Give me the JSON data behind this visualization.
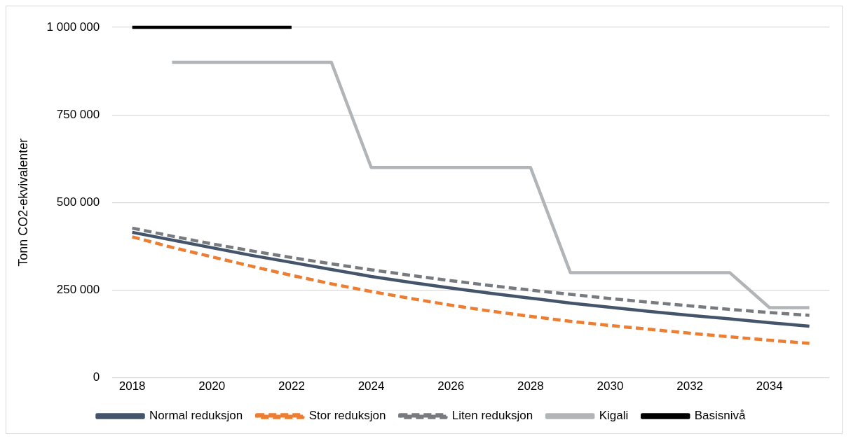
{
  "chart_data": {
    "type": "line",
    "ylabel": "Tonn CO2-ekvivalenter",
    "x": [
      2018,
      2019,
      2020,
      2021,
      2022,
      2023,
      2024,
      2025,
      2026,
      2027,
      2028,
      2029,
      2030,
      2031,
      2032,
      2033,
      2034,
      2035
    ],
    "xlim": [
      2017.5,
      2035.5
    ],
    "xticks": [
      2018,
      2020,
      2022,
      2024,
      2026,
      2028,
      2030,
      2032,
      2034
    ],
    "ylim": [
      0,
      1000000
    ],
    "yticks": [
      0,
      {
        "value": 250000,
        "label": "250 000"
      },
      {
        "value": 500000,
        "label": "500 000"
      },
      {
        "value": 750000,
        "label": "750 000"
      },
      {
        "value": 1000000,
        "label": "1 000 000"
      }
    ],
    "grid": "y",
    "legend": "bottom",
    "marker": "none",
    "series": [
      {
        "name": "Normal reduksjon",
        "color": "#44546a",
        "line_style": "solid",
        "values": [
          415000,
          393000,
          371000,
          349000,
          329000,
          309000,
          289000,
          272000,
          256000,
          241000,
          227000,
          213000,
          201000,
          189000,
          178000,
          168000,
          157000,
          147000
        ]
      },
      {
        "name": "Stor reduksjon",
        "color": "#ed7d31",
        "line_style": "dashed",
        "values": [
          402000,
          372000,
          345000,
          318000,
          292000,
          268000,
          246000,
          226000,
          207000,
          190000,
          175000,
          161000,
          149000,
          138000,
          127000,
          117000,
          107000,
          98000
        ]
      },
      {
        "name": "Liten reduksjon",
        "color": "#777a7e",
        "line_style": "dashed",
        "values": [
          427000,
          404000,
          382000,
          362000,
          343000,
          325000,
          308000,
          292000,
          277000,
          263000,
          250000,
          238000,
          226000,
          215000,
          205000,
          195000,
          186000,
          178000
        ]
      },
      {
        "name": "Kigali",
        "color": "#b2b5b8",
        "line_style": "solid",
        "values": [
          null,
          900000,
          900000,
          900000,
          900000,
          900000,
          600000,
          600000,
          600000,
          600000,
          600000,
          300000,
          300000,
          300000,
          300000,
          300000,
          200000,
          200000
        ]
      },
      {
        "name": "Basisnivå",
        "color": "#000000",
        "line_style": "solid",
        "values": [
          1000000,
          1000000,
          1000000,
          1000000,
          1000000,
          null,
          null,
          null,
          null,
          null,
          null,
          null,
          null,
          null,
          null,
          null,
          null,
          null
        ]
      }
    ]
  }
}
